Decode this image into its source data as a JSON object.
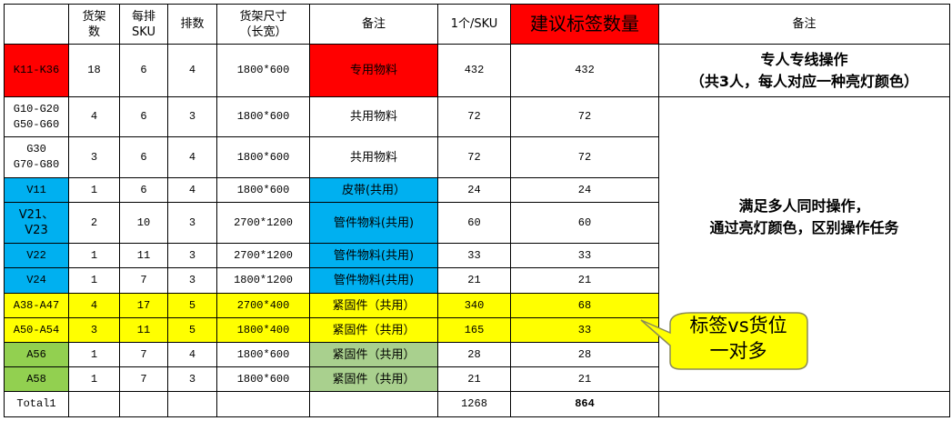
{
  "headers": [
    "",
    "货架\n数",
    "每排\nSKU",
    "排数",
    "货架尺寸\n（长宽）",
    "备注",
    "1个/SKU",
    "建议标签数量",
    "备注"
  ],
  "rows": [
    {
      "zone": "K11-K36",
      "racks": "18",
      "sku_per_row": "6",
      "rows": "4",
      "size": "1800*600",
      "remark": "专用物料",
      "per_sku": "432",
      "labels": "432"
    },
    {
      "zone": "G10-G20\nG50-G60",
      "racks": "4",
      "sku_per_row": "6",
      "rows": "3",
      "size": "1800*600",
      "remark": "共用物料",
      "per_sku": "72",
      "labels": "72"
    },
    {
      "zone": "G30\nG70-G80",
      "racks": "3",
      "sku_per_row": "6",
      "rows": "4",
      "size": "1800*600",
      "remark": "共用物料",
      "per_sku": "72",
      "labels": "72"
    },
    {
      "zone": "V11",
      "racks": "1",
      "sku_per_row": "6",
      "rows": "4",
      "size": "1800*600",
      "remark": "皮带(共用）",
      "per_sku": "24",
      "labels": "24"
    },
    {
      "zone": "V21、\nV23",
      "racks": "2",
      "sku_per_row": "10",
      "rows": "3",
      "size": "2700*1200",
      "remark": "管件物料(共用)",
      "per_sku": "60",
      "labels": "60"
    },
    {
      "zone": "V22",
      "racks": "1",
      "sku_per_row": "11",
      "rows": "3",
      "size": "2700*1200",
      "remark": "管件物料(共用)",
      "per_sku": "33",
      "labels": "33"
    },
    {
      "zone": "V24",
      "racks": "1",
      "sku_per_row": "7",
      "rows": "3",
      "size": "1800*1200",
      "remark": "管件物料(共用)",
      "per_sku": "21",
      "labels": "21"
    },
    {
      "zone": "A38-A47",
      "racks": "4",
      "sku_per_row": "17",
      "rows": "5",
      "size": "2700*400",
      "remark": "紧固件（共用）",
      "per_sku": "340",
      "labels": "68"
    },
    {
      "zone": "A50-A54",
      "racks": "3",
      "sku_per_row": "11",
      "rows": "5",
      "size": "1800*400",
      "remark": "紧固件（共用）",
      "per_sku": "165",
      "labels": "33"
    },
    {
      "zone": "A56",
      "racks": "1",
      "sku_per_row": "7",
      "rows": "4",
      "size": "1800*600",
      "remark": "紧固件（共用）",
      "per_sku": "28",
      "labels": "28"
    },
    {
      "zone": "A58",
      "racks": "1",
      "sku_per_row": "7",
      "rows": "3",
      "size": "1800*600",
      "remark": "紧固件（共用）",
      "per_sku": "21",
      "labels": "21"
    }
  ],
  "total": {
    "label": "Total1",
    "per_sku": "1268",
    "labels": "864"
  },
  "notes": {
    "dedicated": "专人专线操作\n（共3人，每人对应一种亮灯颜色）",
    "shared": "满足多人同时操作，\n通过亮灯颜色，区别操作任务"
  },
  "callout": "标签vs货位\n一对多",
  "colors": {
    "red": "#ff0000",
    "blue": "#00b0f0",
    "yellow": "#ffff00",
    "green": "#92d050",
    "light_green": "#a9d08e",
    "callout_fill": "#ffff00"
  }
}
